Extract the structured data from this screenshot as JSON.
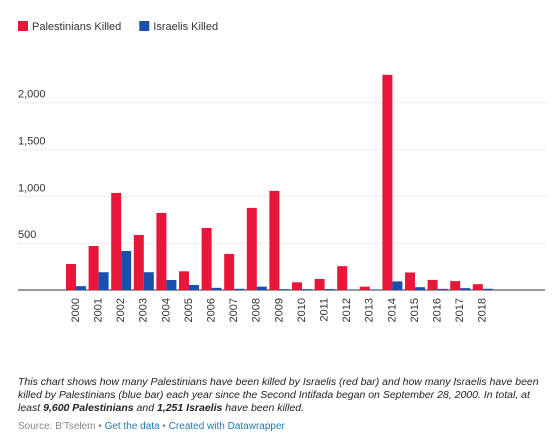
{
  "chart_data": {
    "type": "bar",
    "categories": [
      "2000",
      "2001",
      "2002",
      "2003",
      "2004",
      "2005",
      "2006",
      "2007",
      "2008",
      "2009",
      "2010",
      "2011",
      "2012",
      "2013",
      "2014",
      "2015",
      "2016",
      "2017",
      "2018"
    ],
    "series": [
      {
        "name": "Palestinians Killed",
        "color": "#e8173a",
        "values": [
          278,
          470,
          1037,
          588,
          823,
          200,
          663,
          385,
          877,
          1059,
          82,
          118,
          255,
          36,
          2299,
          187,
          108,
          95,
          62
        ]
      },
      {
        "name": "Israelis Killed",
        "color": "#1b4fae",
        "values": [
          41,
          190,
          417,
          190,
          107,
          54,
          23,
          13,
          36,
          9,
          9,
          11,
          6,
          6,
          92,
          30,
          12,
          20,
          13
        ]
      }
    ],
    "ylim": [
      0,
      2500
    ],
    "yticks": [
      500,
      {
        "value": 1000,
        "label": "1,000"
      },
      {
        "value": 1500,
        "label": "1,500"
      },
      {
        "value": 2000,
        "label": "2,000"
      }
    ],
    "grid": true
  },
  "note": {
    "parts": [
      "This chart shows how many Palestinians have been killed by Israelis (red bar) and how many Israelis have been killed by Palestinians (blue bar) each year since the Second Intifada began on September 28, 2000. In total, at least ",
      "9,600 Palestinians",
      " and ",
      "1,251 Israelis",
      " have been killed."
    ]
  },
  "source": {
    "label": "Source: B'Tselem",
    "sep": "•",
    "links": [
      "Get the data",
      "Created with Datawrapper"
    ]
  }
}
